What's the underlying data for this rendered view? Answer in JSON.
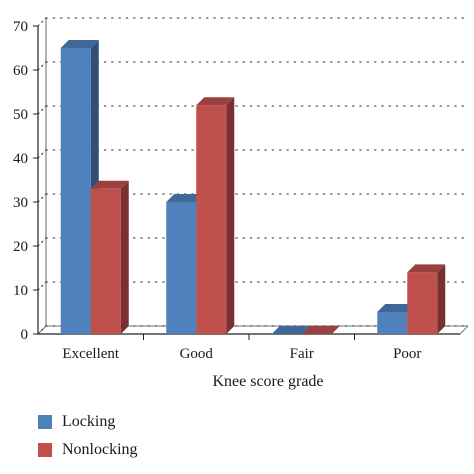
{
  "chart_data": {
    "type": "bar",
    "categories": [
      "Excellent",
      "Good",
      "Fair",
      "Poor"
    ],
    "series": [
      {
        "name": "Locking",
        "color": "#4f81bd",
        "values": [
          65,
          30,
          0,
          5
        ]
      },
      {
        "name": "Nonlocking",
        "color": "#c0504d",
        "values": [
          33,
          52,
          0,
          14
        ]
      }
    ],
    "xlabel": "Knee score grade",
    "ylabel": "",
    "ylim": [
      0,
      70
    ],
    "yticks": [
      0,
      10,
      20,
      30,
      40,
      50,
      60,
      70
    ],
    "grid": true,
    "legend_position": "bottom-left"
  }
}
